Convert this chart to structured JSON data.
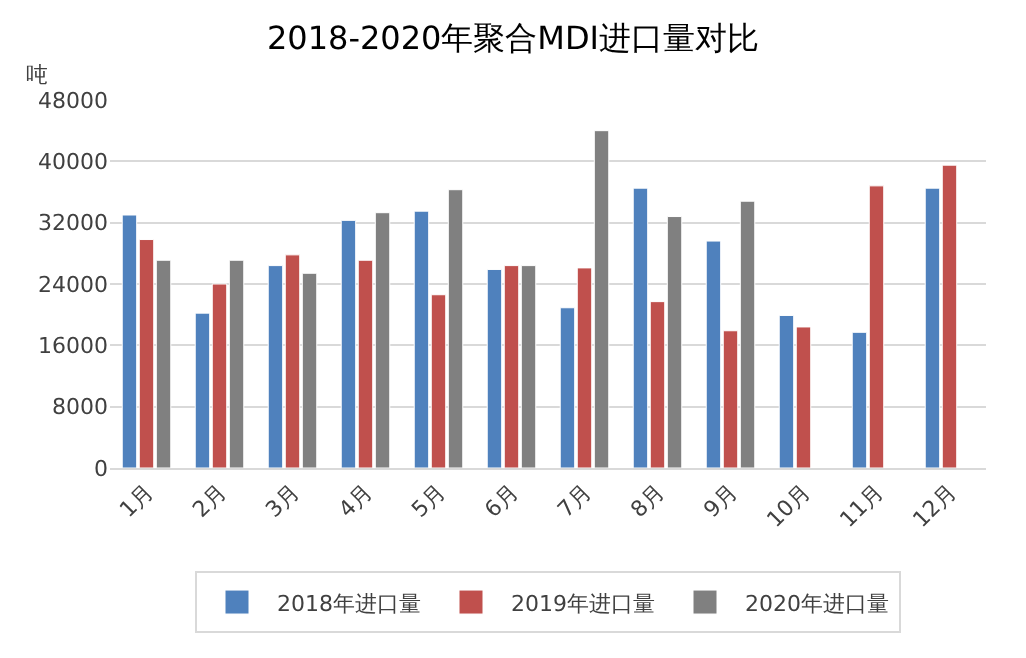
{
  "chart_data": {
    "type": "bar",
    "title": "2018-2020年聚合MDI进口量对比",
    "ylabel": "吨",
    "categories": [
      "1月",
      "2月",
      "3月",
      "4月",
      "5月",
      "6月",
      "7月",
      "8月",
      "9月",
      "10月",
      "11月",
      "12月"
    ],
    "series": [
      {
        "name": "2018年进口量",
        "color": "#4f81bd",
        "values": [
          33000,
          20200,
          26400,
          32300,
          33500,
          25900,
          20900,
          36500,
          29600,
          19900,
          17700,
          36500
        ]
      },
      {
        "name": "2019年进口量",
        "color": "#c0504d",
        "values": [
          29800,
          24000,
          27800,
          27100,
          22600,
          26400,
          26100,
          21700,
          17900,
          18400,
          36800,
          39500
        ]
      },
      {
        "name": "2020年进口量",
        "color": "#808080",
        "values": [
          27100,
          27100,
          25400,
          33300,
          36300,
          26400,
          44000,
          32800,
          34800,
          null,
          null,
          null
        ]
      }
    ],
    "ylim": [
      0,
      48000
    ],
    "yticks": [
      0,
      8000,
      16000,
      24000,
      32000,
      40000,
      48000
    ],
    "grid": "y",
    "legend": "bottom"
  }
}
